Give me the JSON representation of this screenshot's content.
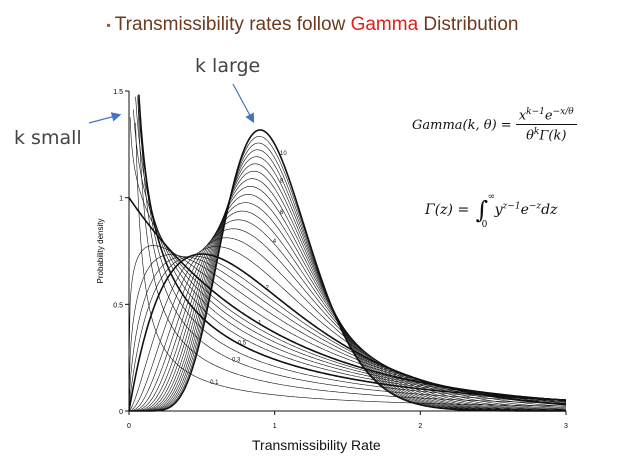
{
  "title": {
    "prefix": "Transmissibility rates follow ",
    "highlight": "Gamma",
    "suffix": " Distribution"
  },
  "callouts": {
    "k_large": "k large",
    "k_small": "k small"
  },
  "formulas": {
    "gamma_lhs": "Gamma(k, θ) =",
    "gamma_num_base": "x",
    "gamma_num_exp": "k−1",
    "gamma_num_e": "e",
    "gamma_num_e_exp": "−x/θ",
    "gamma_den": "θ",
    "gamma_den_exp": "k",
    "gamma_den_rest": "Γ(k)",
    "Gamma_lhs": "Γ(z) =",
    "integral_upper": "∞",
    "integral_lower": "0",
    "integrand_y": "y",
    "integrand_y_exp": "z−1",
    "integrand_e": "e",
    "integrand_e_exp": "−z",
    "integrand_dz": "dz"
  },
  "colors": {
    "title_text": "#6b3a1f",
    "highlight": "#e0201b",
    "arrow": "#4472c4",
    "curve": "#111111"
  },
  "chart_data": {
    "type": "line",
    "xlabel": "Transmissibility Rate",
    "ylabel": "Probability density",
    "xlim": [
      0,
      3
    ],
    "ylim": [
      0,
      1.5
    ],
    "xticks": [
      "0",
      "1",
      "2",
      "3"
    ],
    "yticks": [
      "0",
      "0.5",
      "1",
      "1.5"
    ],
    "grid": false,
    "shape_params": [
      0.1,
      0.2,
      0.3,
      0.4,
      0.5,
      0.6,
      0.7,
      0.8,
      0.9,
      1,
      1.2,
      1.4,
      1.6,
      1.8,
      2,
      2.5,
      3,
      3.5,
      4,
      4.5,
      5,
      5.5,
      6,
      6.5,
      7,
      7.5,
      8,
      8.5,
      9,
      9.5,
      10
    ],
    "bold_shape_params": [
      0.5,
      1,
      2,
      10
    ],
    "curve_labels": [
      {
        "text": "10",
        "k": 10
      },
      {
        "text": "8",
        "k": 8
      },
      {
        "text": "6",
        "k": 6
      },
      {
        "text": "4",
        "k": 4
      },
      {
        "text": "2",
        "k": 2
      },
      {
        "text": "1",
        "k": 1
      },
      {
        "text": "0.5",
        "k": 0.5
      },
      {
        "text": "0.3",
        "k": 0.3
      },
      {
        "text": "0.1",
        "k": 0.1
      }
    ]
  }
}
